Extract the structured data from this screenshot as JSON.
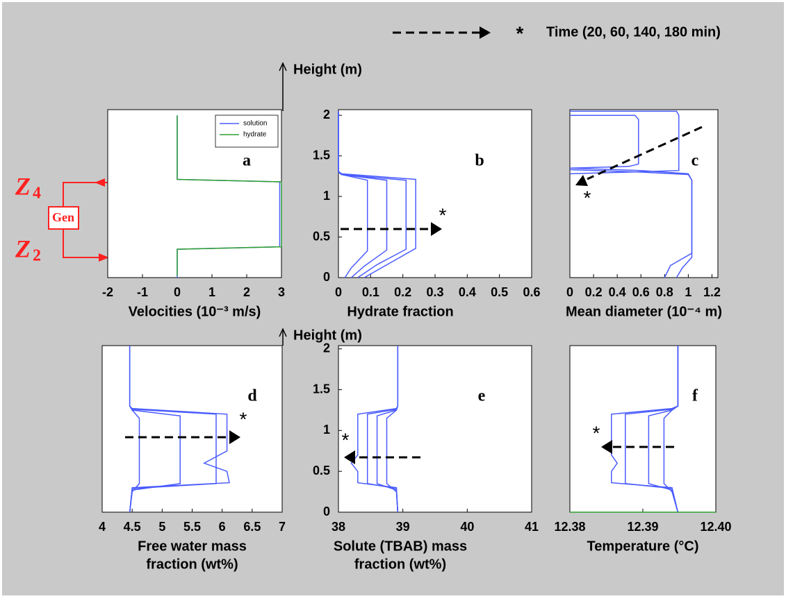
{
  "header": {
    "symbol": "*",
    "text": "Time (20, 60, 140, 180 min)"
  },
  "generator": {
    "top": {
      "letter": "Z",
      "index": "4"
    },
    "box": "Gen",
    "bottom": {
      "letter": "Z",
      "index": "2"
    }
  },
  "chart_data": [
    {
      "type": "line",
      "label": "a",
      "xlabel": [
        "Velocities (10⁻³ m/s)"
      ],
      "xlim": [
        -2,
        3
      ],
      "ylim": [
        0,
        2.07
      ],
      "xticks": [
        -2,
        -1,
        0,
        1,
        2,
        3
      ],
      "legend": "upper right",
      "series": [
        {
          "name": "solution",
          "color": "#4a5cff",
          "x": [
            0,
            0,
            2.95,
            2.95,
            0,
            0
          ],
          "y": [
            0,
            0.35,
            0.38,
            1.18,
            1.21,
            2.0
          ]
        },
        {
          "name": "hydrate",
          "color": "#2ea02e",
          "x": [
            0,
            0,
            3,
            3,
            0,
            0
          ],
          "y": [
            0.02,
            0.35,
            0.38,
            1.18,
            1.21,
            2.0
          ]
        }
      ]
    },
    {
      "type": "line",
      "label": "b",
      "annotation": "*",
      "xlabel": [
        "Hydrate fraction"
      ],
      "ylabel": "Height (m)",
      "xlim": [
        0,
        0.6
      ],
      "ylim": [
        0,
        2.07
      ],
      "xticks": [
        0,
        0.1,
        0.2,
        0.3,
        0.4,
        0.5,
        0.6
      ],
      "yticks": [
        0,
        0.5,
        1,
        1.5,
        2
      ],
      "series": [
        {
          "color": "#4a5cff",
          "x": [
            0.02,
            0.04,
            0.09,
            0.09,
            0.01,
            0,
            0
          ],
          "y": [
            0,
            0.12,
            0.33,
            1.2,
            1.27,
            1.3,
            2.05
          ]
        },
        {
          "color": "#4a5cff",
          "x": [
            0.04,
            0.08,
            0.15,
            0.15,
            0.01,
            0,
            0
          ],
          "y": [
            0,
            0.14,
            0.34,
            1.2,
            1.27,
            1.3,
            2.05
          ]
        },
        {
          "color": "#4a5cff",
          "x": [
            0.06,
            0.12,
            0.21,
            0.21,
            0.01,
            0,
            0
          ],
          "y": [
            0,
            0.16,
            0.35,
            1.2,
            1.27,
            1.3,
            2.05
          ]
        },
        {
          "color": "#4a5cff",
          "x": [
            0.08,
            0.16,
            0.24,
            0.24,
            0.01,
            0,
            0
          ],
          "y": [
            0,
            0.18,
            0.36,
            1.21,
            1.28,
            1.31,
            2.05
          ]
        }
      ]
    },
    {
      "type": "line",
      "label": "c",
      "annotation": "*",
      "xlabel": [
        "Mean diameter (10⁻⁴ m)"
      ],
      "xlim": [
        0,
        1.25
      ],
      "ylim": [
        0,
        2.07
      ],
      "xticks": [
        0,
        0.2,
        0.4,
        0.6,
        0.8,
        1,
        1.2
      ],
      "series": [
        {
          "color": "#4a5cff",
          "x": [
            0,
            0.55,
            0.58,
            0.58,
            0.5,
            0
          ],
          "y": [
            2.0,
            2.0,
            1.95,
            1.4,
            1.37,
            1.35
          ]
        },
        {
          "color": "#4a5cff",
          "x": [
            0,
            0.9,
            0.92,
            0.92,
            0.5,
            0
          ],
          "y": [
            2.05,
            2.05,
            2.0,
            1.32,
            1.3,
            1.28
          ]
        },
        {
          "color": "#4a5cff",
          "x": [
            0,
            0.6,
            1.0,
            1.03,
            1.03,
            0.95,
            0.9
          ],
          "y": [
            1.35,
            1.32,
            1.28,
            1.2,
            0.25,
            0.12,
            0
          ]
        },
        {
          "color": "#4a5cff",
          "x": [
            0,
            0.6,
            1.0,
            1.03,
            1.03,
            0.85,
            0.8
          ],
          "y": [
            1.33,
            1.3,
            1.27,
            1.2,
            0.3,
            0.15,
            0
          ]
        }
      ]
    },
    {
      "type": "line",
      "label": "d",
      "annotation": "*",
      "xlabel": [
        "Free water mass",
        "fraction (wt%)"
      ],
      "xlim": [
        4,
        7
      ],
      "ylim": [
        0,
        2.04
      ],
      "xticks": [
        4,
        4.5,
        5,
        5.5,
        6,
        6.5,
        7
      ],
      "series": [
        {
          "color": "#4a5cff",
          "x": [
            4.46,
            4.5,
            4.62,
            4.62,
            4.62,
            4.5,
            4.46,
            4.46
          ],
          "y": [
            0,
            0.25,
            0.35,
            0.7,
            1.15,
            1.25,
            1.3,
            2.04
          ]
        },
        {
          "color": "#4a5cff",
          "x": [
            4.46,
            4.5,
            5.3,
            5.3,
            5.3,
            4.5,
            4.46,
            4.46
          ],
          "y": [
            0,
            0.27,
            0.35,
            0.7,
            1.18,
            1.25,
            1.3,
            2.04
          ]
        },
        {
          "color": "#4a5cff",
          "x": [
            4.46,
            4.5,
            5.9,
            5.9,
            5.9,
            4.5,
            4.46,
            4.46
          ],
          "y": [
            0,
            0.29,
            0.35,
            0.7,
            1.2,
            1.26,
            1.3,
            2.04
          ]
        },
        {
          "color": "#4a5cff",
          "x": [
            4.46,
            4.5,
            6.12,
            6.08,
            5.7,
            6.08,
            6.08,
            4.5,
            4.46,
            4.46
          ],
          "y": [
            0,
            0.3,
            0.36,
            0.5,
            0.6,
            0.75,
            1.2,
            1.27,
            1.3,
            2.04
          ]
        }
      ]
    },
    {
      "type": "line",
      "label": "e",
      "annotation": "*",
      "xlabel": [
        "Solute (TBAB) mass",
        "fraction (wt%)"
      ],
      "ylabel": "Height (m)",
      "xlim": [
        38,
        41
      ],
      "ylim": [
        0,
        2.04
      ],
      "xticks": [
        38,
        39,
        40,
        41
      ],
      "yticks": [
        0,
        0.5,
        1,
        1.5,
        2
      ],
      "series": [
        {
          "color": "#4a5cff",
          "x": [
            38.92,
            38.9,
            38.3,
            38.3,
            38.2,
            38.3,
            38.3,
            38.9,
            38.92,
            38.92
          ],
          "y": [
            0,
            0.3,
            0.36,
            0.5,
            0.6,
            0.7,
            1.2,
            1.27,
            1.3,
            2.04
          ]
        },
        {
          "color": "#4a5cff",
          "x": [
            38.92,
            38.9,
            38.45,
            38.45,
            38.45,
            38.9,
            38.92,
            38.92
          ],
          "y": [
            0,
            0.29,
            0.35,
            0.7,
            1.2,
            1.26,
            1.3,
            2.04
          ]
        },
        {
          "color": "#4a5cff",
          "x": [
            38.92,
            38.9,
            38.6,
            38.6,
            38.6,
            38.9,
            38.92,
            38.92
          ],
          "y": [
            0,
            0.27,
            0.35,
            0.7,
            1.18,
            1.25,
            1.3,
            2.04
          ]
        },
        {
          "color": "#4a5cff",
          "x": [
            38.92,
            38.9,
            38.75,
            38.75,
            38.75,
            38.9,
            38.92,
            38.92
          ],
          "y": [
            0,
            0.25,
            0.35,
            0.7,
            1.15,
            1.25,
            1.3,
            2.04
          ]
        }
      ]
    },
    {
      "type": "line",
      "label": "f",
      "annotation": "*",
      "xlabel": [
        "Temperature (°C)"
      ],
      "xlim": [
        12.38,
        12.4
      ],
      "ylim": [
        0,
        2.04
      ],
      "xticks": [
        12.38,
        12.39,
        {
          "value": 12.4,
          "label": "12.40"
        }
      ],
      "series": [
        {
          "color": "#4a5cff",
          "x": [
            12.3948,
            12.394,
            12.3857,
            12.3857,
            12.3865,
            12.3857,
            12.3857,
            12.394,
            12.3948,
            12.3948
          ],
          "y": [
            0,
            0.3,
            0.36,
            0.5,
            0.6,
            0.7,
            1.2,
            1.27,
            1.3,
            2.04
          ]
        },
        {
          "color": "#4a5cff",
          "x": [
            12.3948,
            12.394,
            12.3876,
            12.3876,
            12.3876,
            12.394,
            12.3948,
            12.3948
          ],
          "y": [
            0,
            0.29,
            0.35,
            0.7,
            1.2,
            1.26,
            1.3,
            2.04
          ]
        },
        {
          "color": "#4a5cff",
          "x": [
            12.3948,
            12.394,
            12.3908,
            12.3908,
            12.3908,
            12.394,
            12.3948,
            12.3948
          ],
          "y": [
            0,
            0.27,
            0.35,
            0.7,
            1.18,
            1.25,
            1.3,
            2.04
          ]
        },
        {
          "color": "#4a5cff",
          "x": [
            12.3948,
            12.394,
            12.3929,
            12.3929,
            12.3929,
            12.394,
            12.3948,
            12.3948
          ],
          "y": [
            0,
            0.25,
            0.35,
            0.7,
            1.15,
            1.25,
            1.3,
            2.04
          ]
        },
        {
          "color": "#2ea02e",
          "x": [
            12.38,
            12.4
          ],
          "y": [
            0,
            0
          ]
        }
      ]
    }
  ]
}
